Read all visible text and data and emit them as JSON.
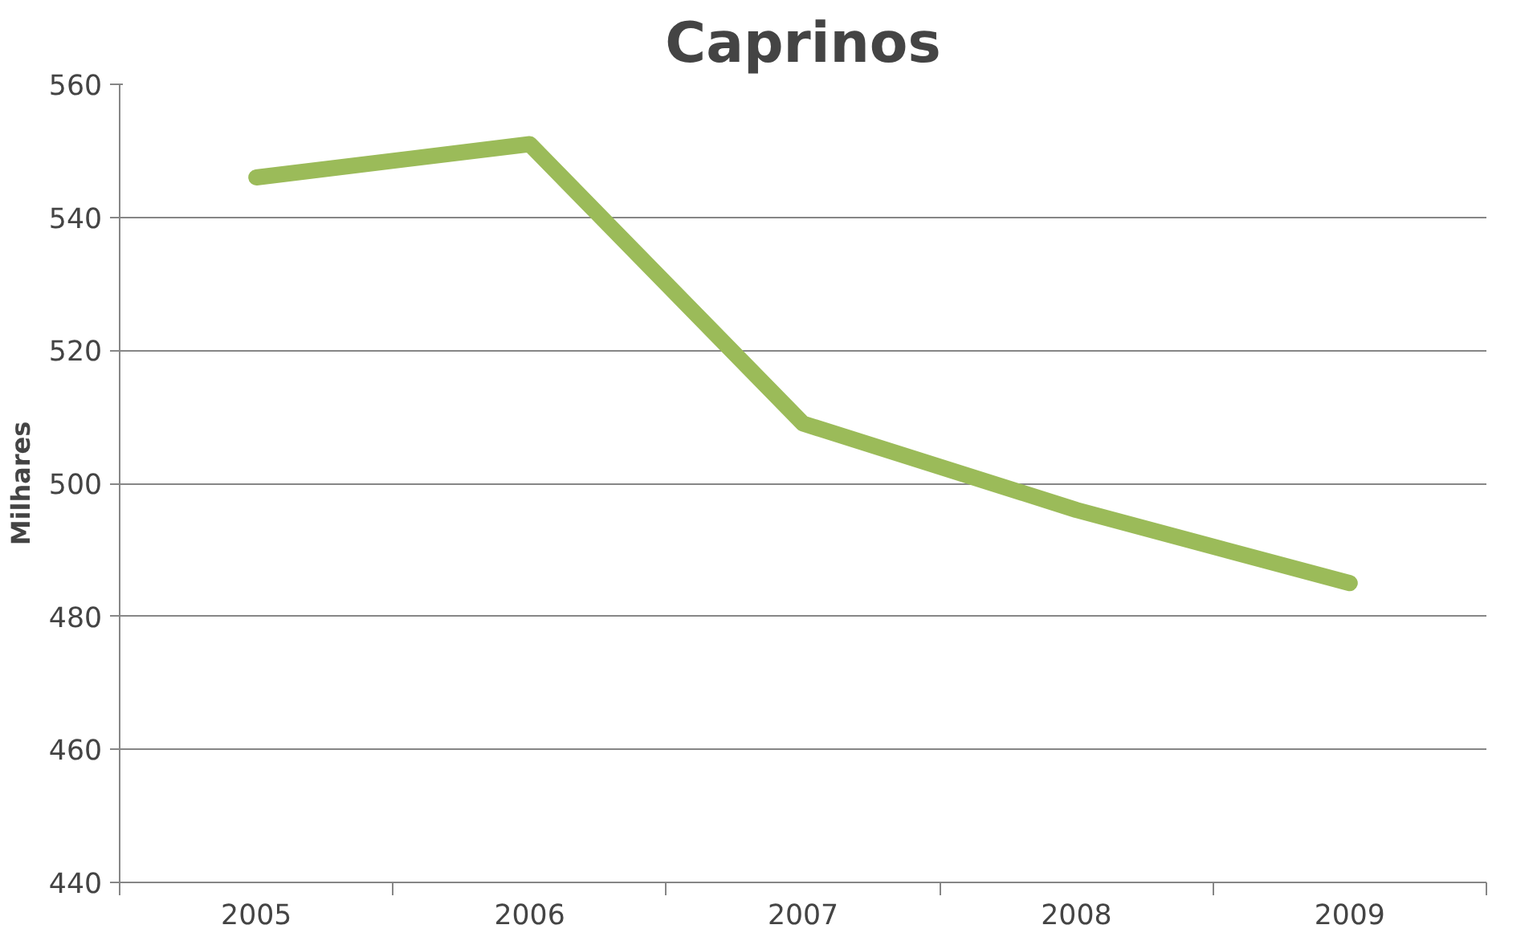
{
  "chart_data": {
    "type": "line",
    "title": "Caprinos",
    "ylabel": "Milhares",
    "categories": [
      "2005",
      "2006",
      "2007",
      "2008",
      "2009"
    ],
    "series": [
      {
        "color": "#9bbb59",
        "values": [
          546,
          551,
          509,
          496,
          485
        ]
      }
    ],
    "ylim": [
      440,
      560
    ],
    "yticks": [
      440,
      460,
      480,
      500,
      520,
      540,
      560
    ],
    "grid": "y",
    "marker": "none",
    "line_style": "solid"
  }
}
